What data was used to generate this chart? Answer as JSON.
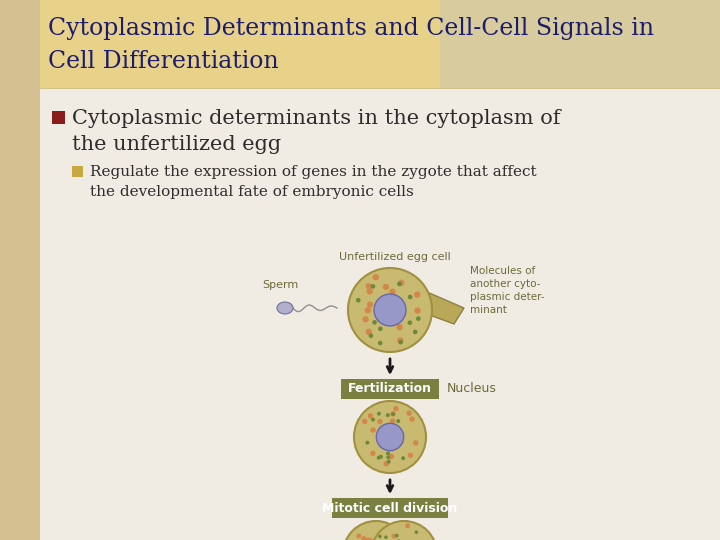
{
  "title_line1": "Cytoplasmic Determinants and Cell-Cell Signals in",
  "title_line2": "Cell Differentiation",
  "title_color": "#1c1c6e",
  "title_fontsize": 17,
  "title_bg_color_left": "#e8d080",
  "title_bg_color_right": "#c8b870",
  "bg_color_left_strip": "#d4c090",
  "bg_color_main": "#f0ece4",
  "bullet1_text_line1": "Cytoplasmic determinants in the cytoplasm of",
  "bullet1_text_line2": "the unfertilized egg",
  "bullet1_color": "#2d2d2d",
  "bullet1_marker_color": "#8b1a1a",
  "bullet2_line1": "Regulate the expression of genes in the zygote that affect",
  "bullet2_line2": "the developmental fate of embryonic cells",
  "bullet2_color": "#2d2d2d",
  "bullet2_marker_color": "#c8a840",
  "label_sperm": "Sperm",
  "label_egg": "Unfertilized egg cell",
  "label_molecules_line1": "Molecules of",
  "label_molecules_line2": "another cyto-",
  "label_molecules_line3": "plasmic deter-",
  "label_molecules_line4": "minant",
  "label_fertilization": "Fertilization",
  "label_nucleus": "Nucleus",
  "label_mitotic": "Mitotic cell division",
  "label_color_diagram": "#6b6b3a",
  "box_color": "#7a8040",
  "arrow_color": "#1a1a1a",
  "cell_outer_color": "#c8ba70",
  "cell_border_color": "#a09040",
  "cell_dots_orange": "#d4874a",
  "cell_dots_green": "#6a8a3a",
  "cell_nucleus_color": "#9898c8",
  "cell_nucleus_border": "#6868a8",
  "sperm_color": "#b0b0cc",
  "sperm_border": "#7070a0"
}
